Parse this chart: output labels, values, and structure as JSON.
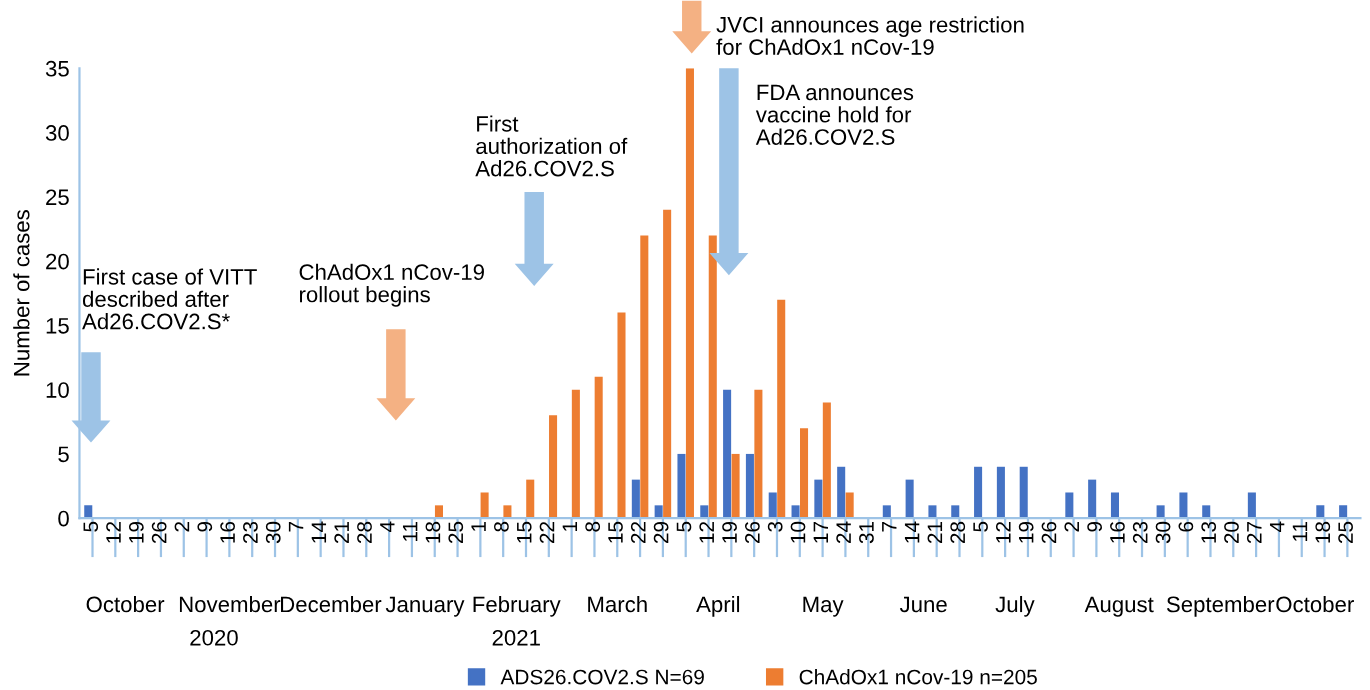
{
  "chart_data": {
    "type": "bar",
    "ylabel": "Number of cases",
    "x": [
      "2020-10-05",
      "2020-10-12",
      "2020-10-19",
      "2020-10-26",
      "2020-11-02",
      "2020-11-09",
      "2020-11-16",
      "2020-11-23",
      "2020-11-30",
      "2020-12-07",
      "2020-12-14",
      "2020-12-21",
      "2020-12-28",
      "2021-01-04",
      "2021-01-11",
      "2021-01-18",
      "2021-01-25",
      "2021-02-01",
      "2021-02-08",
      "2021-02-15",
      "2021-02-22",
      "2021-03-01",
      "2021-03-08",
      "2021-03-15",
      "2021-03-22",
      "2021-03-29",
      "2021-04-05",
      "2021-04-12",
      "2021-04-19",
      "2021-04-26",
      "2021-05-03",
      "2021-05-10",
      "2021-05-17",
      "2021-05-24",
      "2021-05-31",
      "2021-06-07",
      "2021-06-14",
      "2021-06-21",
      "2021-06-28",
      "2021-07-05",
      "2021-07-12",
      "2021-07-19",
      "2021-07-26",
      "2021-08-02",
      "2021-08-09",
      "2021-08-16",
      "2021-08-23",
      "2021-08-30",
      "2021-09-06",
      "2021-09-13",
      "2021-09-20",
      "2021-09-27",
      "2021-10-04",
      "2021-10-11",
      "2021-10-18",
      "2021-10-25"
    ],
    "series": [
      {
        "name": "ADS26.COV2.S N=69",
        "color": "#4472c4",
        "values": [
          1,
          0,
          0,
          0,
          0,
          0,
          0,
          0,
          0,
          0,
          0,
          0,
          0,
          0,
          0,
          0,
          0,
          0,
          0,
          0,
          0,
          0,
          0,
          0,
          3,
          1,
          5,
          1,
          10,
          5,
          2,
          1,
          3,
          4,
          0,
          1,
          3,
          1,
          1,
          4,
          4,
          4,
          0,
          2,
          3,
          2,
          0,
          1,
          2,
          1,
          0,
          2,
          0,
          0,
          1,
          1
        ]
      },
      {
        "name": "ChAdOx1 nCov-19 n=205",
        "color": "#ed7d31",
        "values": [
          0,
          0,
          0,
          0,
          0,
          0,
          0,
          0,
          0,
          0,
          0,
          0,
          0,
          0,
          0,
          1,
          0,
          2,
          1,
          3,
          8,
          10,
          11,
          16,
          22,
          24,
          35,
          22,
          5,
          10,
          17,
          7,
          9,
          2,
          0,
          0,
          0,
          0,
          0,
          0,
          0,
          0,
          0,
          0,
          0,
          0,
          0,
          0,
          0,
          0,
          0,
          0,
          0,
          0,
          0,
          0
        ]
      }
    ],
    "xlim": [
      "2020-10-01",
      "2021-10-29"
    ],
    "xticks": [
      {
        "value": "2020-10-05",
        "label": "5"
      },
      {
        "value": "2020-10-12",
        "label": "12"
      },
      {
        "value": "2020-10-19",
        "label": "19"
      },
      {
        "value": "2020-10-26",
        "label": "26"
      },
      {
        "value": "2020-11-02",
        "label": "2"
      },
      {
        "value": "2020-11-09",
        "label": "9"
      },
      {
        "value": "2020-11-16",
        "label": "16"
      },
      {
        "value": "2020-11-23",
        "label": "23"
      },
      {
        "value": "2020-11-30",
        "label": "30"
      },
      {
        "value": "2020-12-07",
        "label": "7"
      },
      {
        "value": "2020-12-14",
        "label": "14"
      },
      {
        "value": "2020-12-21",
        "label": "21"
      },
      {
        "value": "2020-12-28",
        "label": "28"
      },
      {
        "value": "2021-01-04",
        "label": "4"
      },
      {
        "value": "2021-01-11",
        "label": "11"
      },
      {
        "value": "2021-01-18",
        "label": "18"
      },
      {
        "value": "2021-01-25",
        "label": "25"
      },
      {
        "value": "2021-02-01",
        "label": "1"
      },
      {
        "value": "2021-02-08",
        "label": "8"
      },
      {
        "value": "2021-02-15",
        "label": "15"
      },
      {
        "value": "2021-02-22",
        "label": "22"
      },
      {
        "value": "2021-03-01",
        "label": "1"
      },
      {
        "value": "2021-03-08",
        "label": "8"
      },
      {
        "value": "2021-03-15",
        "label": "15"
      },
      {
        "value": "2021-03-22",
        "label": "22"
      },
      {
        "value": "2021-03-29",
        "label": "29"
      },
      {
        "value": "2021-04-05",
        "label": "5"
      },
      {
        "value": "2021-04-12",
        "label": "12"
      },
      {
        "value": "2021-04-19",
        "label": "19"
      },
      {
        "value": "2021-04-26",
        "label": "26"
      },
      {
        "value": "2021-05-03",
        "label": "3"
      },
      {
        "value": "2021-05-10",
        "label": "10"
      },
      {
        "value": "2021-05-17",
        "label": "17"
      },
      {
        "value": "2021-05-24",
        "label": "24"
      },
      {
        "value": "2021-05-31",
        "label": "31"
      },
      {
        "value": "2021-06-07",
        "label": "7"
      },
      {
        "value": "2021-06-14",
        "label": "14"
      },
      {
        "value": "2021-06-21",
        "label": "21"
      },
      {
        "value": "2021-06-28",
        "label": "28"
      },
      {
        "value": "2021-07-05",
        "label": "5"
      },
      {
        "value": "2021-07-12",
        "label": "12"
      },
      {
        "value": "2021-07-19",
        "label": "19"
      },
      {
        "value": "2021-07-26",
        "label": "26"
      },
      {
        "value": "2021-08-02",
        "label": "2"
      },
      {
        "value": "2021-08-09",
        "label": "9"
      },
      {
        "value": "2021-08-16",
        "label": "16"
      },
      {
        "value": "2021-08-23",
        "label": "23"
      },
      {
        "value": "2021-08-30",
        "label": "30"
      },
      {
        "value": "2021-09-06",
        "label": "6"
      },
      {
        "value": "2021-09-13",
        "label": "13"
      },
      {
        "value": "2021-09-20",
        "label": "20"
      },
      {
        "value": "2021-09-27",
        "label": "27"
      },
      {
        "value": "2021-10-04",
        "label": "4"
      },
      {
        "value": "2021-10-11",
        "label": "11"
      },
      {
        "value": "2021-10-18",
        "label": "18"
      },
      {
        "value": "2021-10-25",
        "label": "25"
      }
    ],
    "x2lim": [
      "2020-10-01",
      "2021-10-29"
    ],
    "x2ticks": [
      {
        "value": "2020-10-15",
        "label": "October"
      },
      {
        "value": "2020-11-16",
        "label": "November"
      },
      {
        "value": "2020-12-17",
        "label": "December"
      },
      {
        "value": "2021-01-15",
        "label": "January"
      },
      {
        "value": "2021-02-12",
        "label": "February"
      },
      {
        "value": "2021-03-15",
        "label": "March"
      },
      {
        "value": "2021-04-15",
        "label": "April"
      },
      {
        "value": "2021-05-17",
        "label": "May"
      },
      {
        "value": "2021-06-17",
        "label": "June"
      },
      {
        "value": "2021-07-15",
        "label": "July"
      },
      {
        "value": "2021-08-16",
        "label": "August"
      },
      {
        "value": "2021-09-16",
        "label": "September"
      },
      {
        "value": "2021-10-15",
        "label": "October"
      }
    ],
    "ylim": [
      0,
      35
    ],
    "yticks": [
      0,
      5,
      10,
      15,
      20,
      25,
      30,
      35
    ],
    "grid": false,
    "legend": "bottom",
    "annotations": [
      "First case of VITT\ndescribed after\nAd26.COV2.S*",
      "ChAdOx1 nCov-19\nrollout begins",
      "First\nauthorization of\nAd26.COV2.S",
      "JVCI announces age restriction\nfor ChAdOx1 nCov-19",
      "FDA announces\nvaccine hold for\nAd26.COV2.S",
      "2020",
      "2021"
    ]
  }
}
